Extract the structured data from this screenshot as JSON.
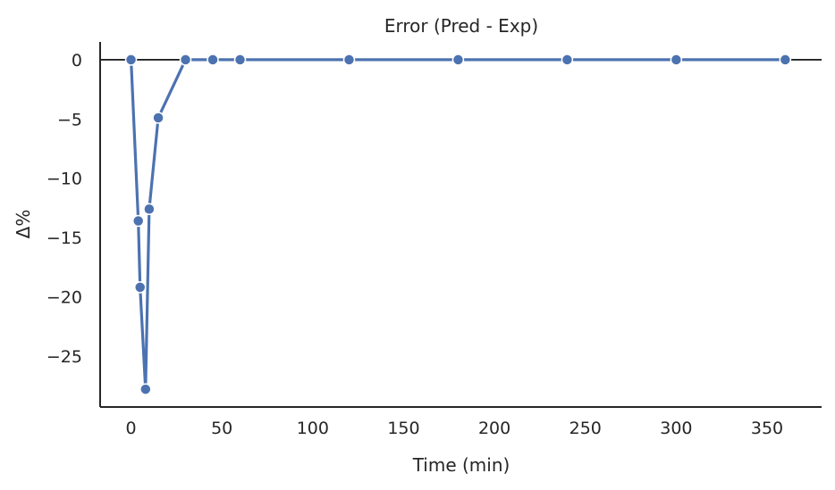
{
  "chart_data": {
    "type": "line",
    "title": "Error (Pred - Exp)",
    "xlabel": "Time (min)",
    "ylabel": "Δ%",
    "xlim": [
      -17,
      380
    ],
    "ylim": [
      -29.3,
      1.5
    ],
    "x_ticks": [
      0,
      50,
      100,
      150,
      200,
      250,
      300,
      350
    ],
    "y_ticks": [
      0,
      -5,
      -10,
      -15,
      -20,
      -25
    ],
    "x_tick_labels": [
      "0",
      "50",
      "100",
      "150",
      "200",
      "250",
      "300",
      "350"
    ],
    "y_tick_labels": [
      "0",
      "−5",
      "−10",
      "−15",
      "−20",
      "−25"
    ],
    "reference_line_y": 0,
    "grid": false,
    "series": [
      {
        "color": "#4c72b0",
        "marker": "circle",
        "x": [
          0,
          4,
          5,
          8,
          10,
          15,
          30,
          45,
          60,
          120,
          180,
          240,
          300,
          360
        ],
        "y": [
          0,
          -13.6,
          -19.2,
          -27.8,
          -12.6,
          -4.9,
          0,
          0,
          0,
          0,
          0,
          0,
          0,
          0
        ]
      }
    ]
  }
}
